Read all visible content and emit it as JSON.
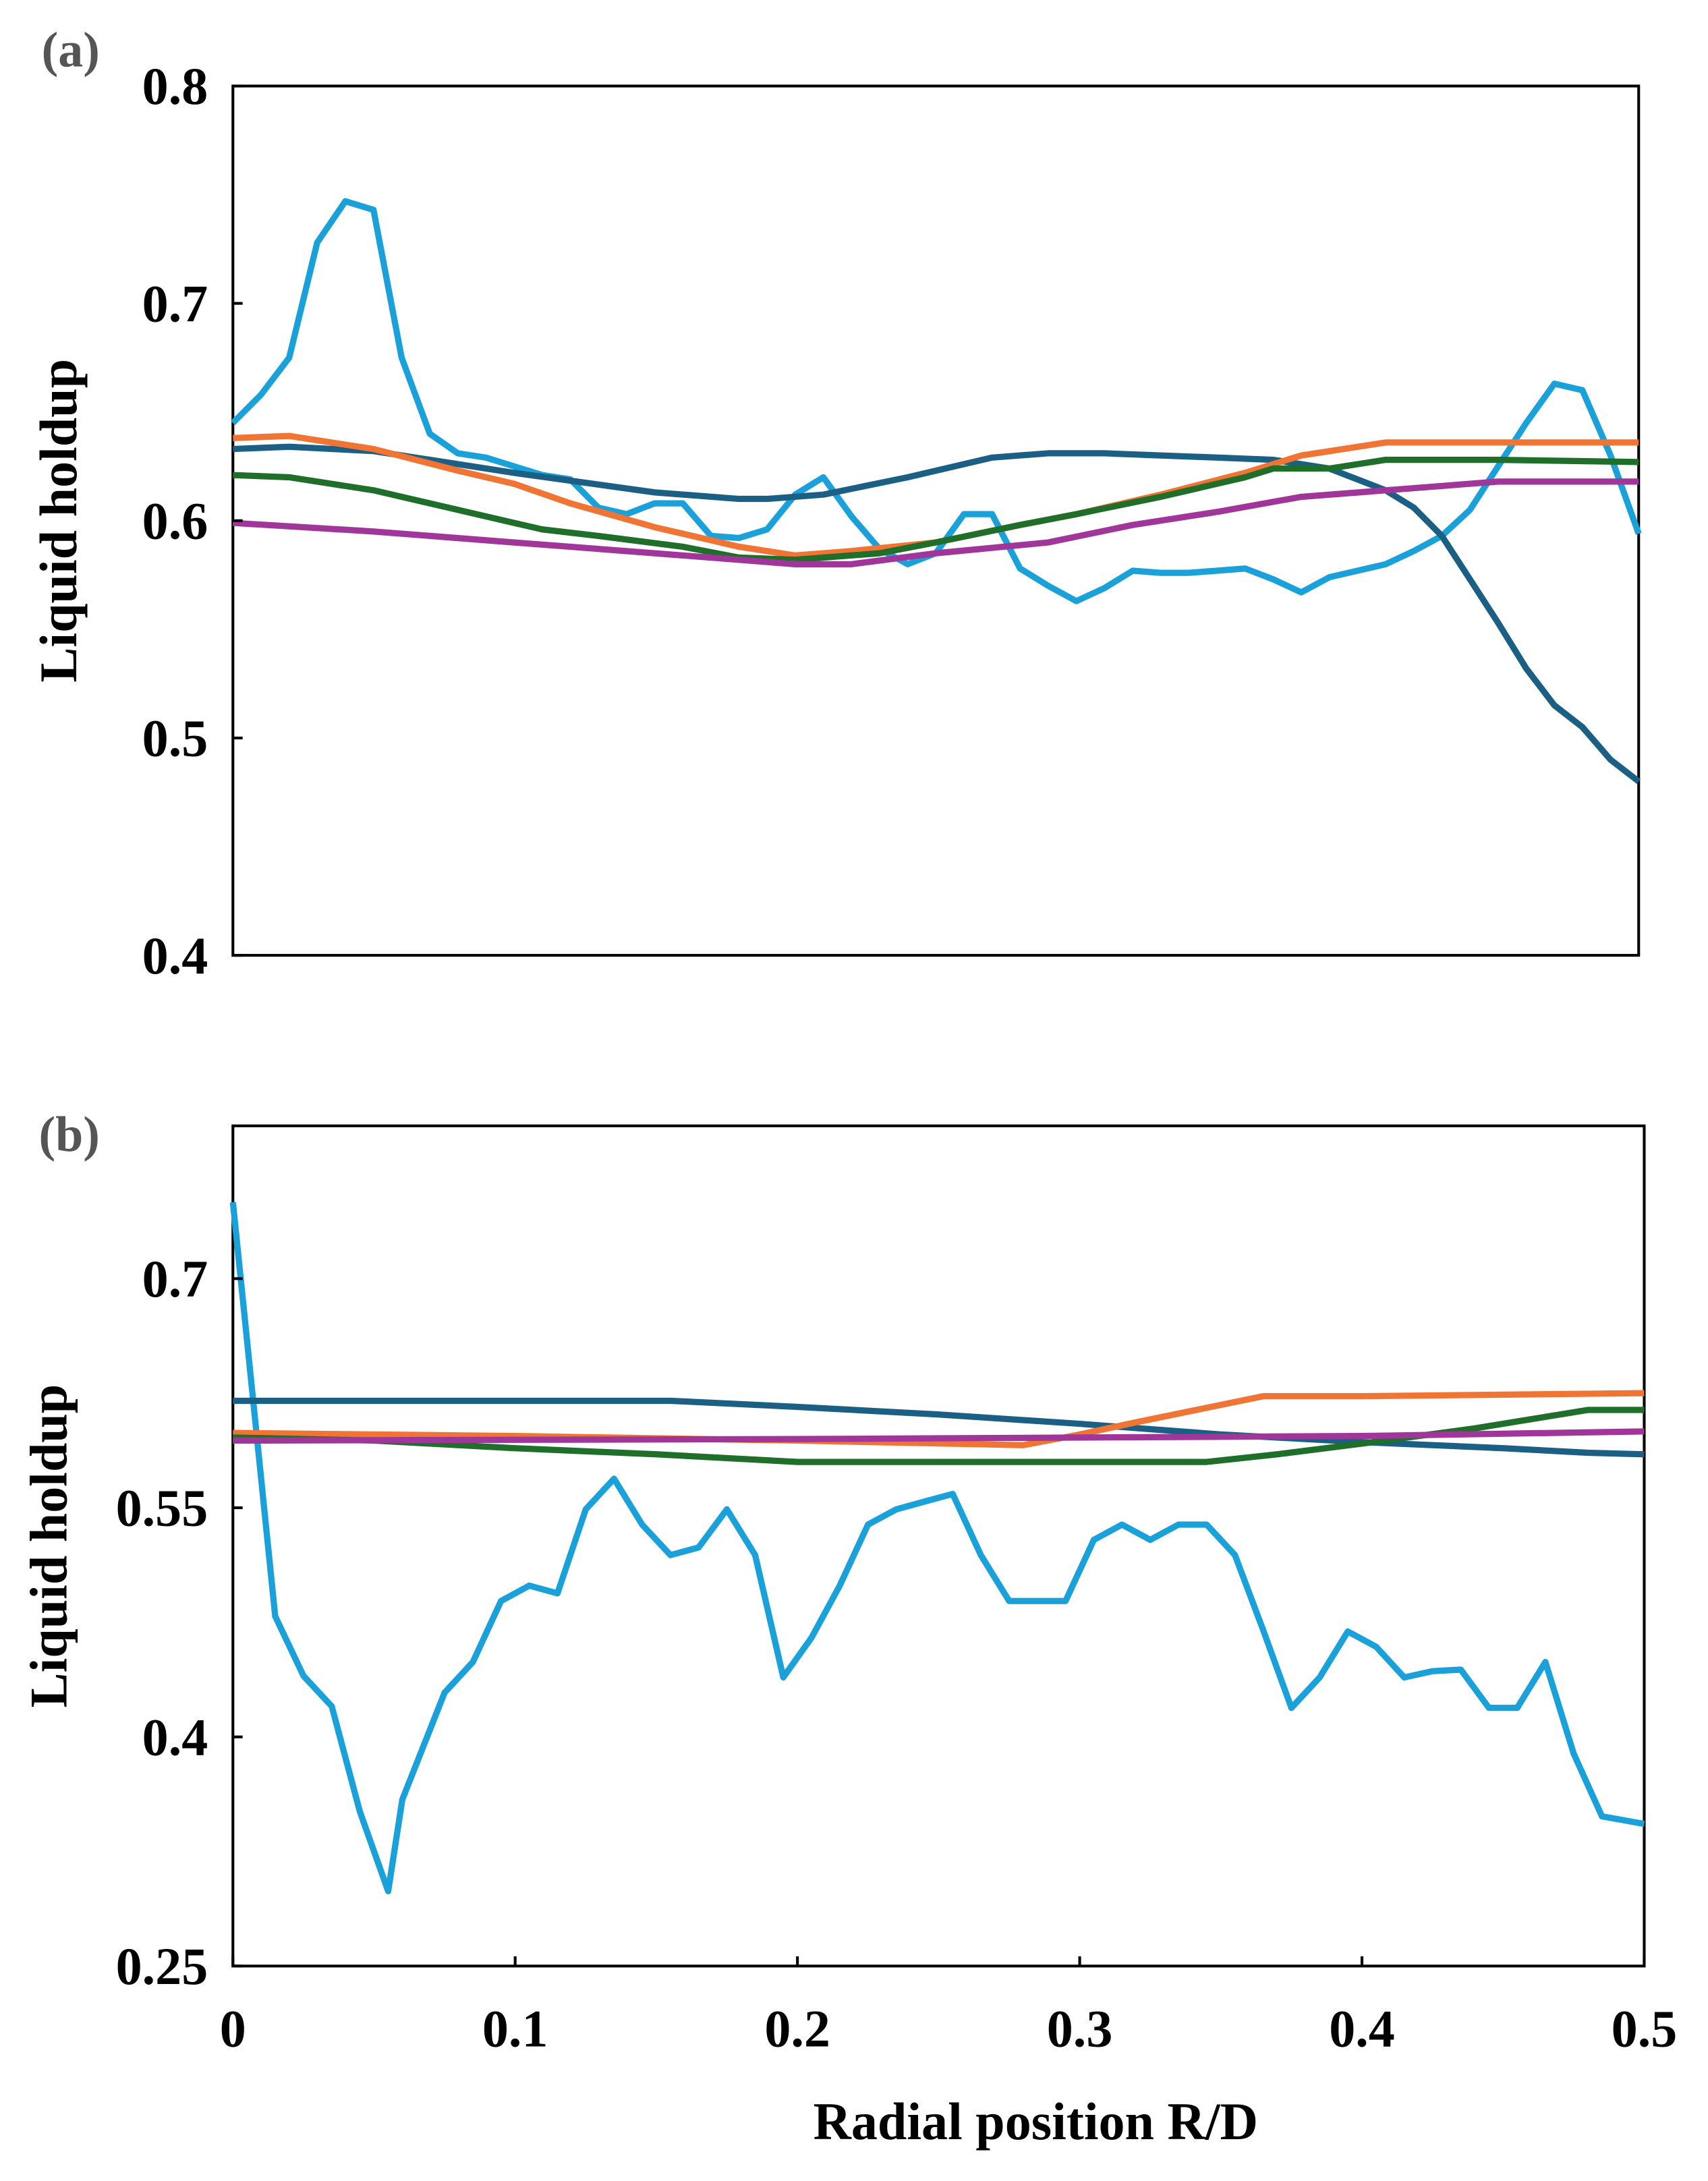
{
  "chart_data": [
    {
      "type": "line",
      "panel_label": "(a)",
      "xlabel": "",
      "ylabel": "Liquid holdup",
      "xlim": [
        0,
        0.5
      ],
      "ylim": [
        0.4,
        0.8
      ],
      "yticks": [
        "0.4",
        "0.5",
        "0.6",
        "0.7",
        "0.8"
      ],
      "xticks": [],
      "grid": false,
      "series": [
        {
          "color": "#1ba1d9",
          "x": [
            0,
            0.01,
            0.02,
            0.03,
            0.04,
            0.05,
            0.06,
            0.07,
            0.08,
            0.09,
            0.1,
            0.11,
            0.12,
            0.13,
            0.14,
            0.15,
            0.16,
            0.17,
            0.18,
            0.19,
            0.2,
            0.21,
            0.22,
            0.23,
            0.24,
            0.25,
            0.26,
            0.27,
            0.28,
            0.29,
            0.3,
            0.31,
            0.32,
            0.33,
            0.34,
            0.35,
            0.36,
            0.37,
            0.38,
            0.39,
            0.4,
            0.41,
            0.42,
            0.43,
            0.44,
            0.45,
            0.46,
            0.47,
            0.48,
            0.49,
            0.5
          ],
          "y": [
            0.645,
            0.658,
            0.675,
            0.728,
            0.747,
            0.743,
            0.675,
            0.64,
            0.631,
            0.629,
            0.625,
            0.621,
            0.619,
            0.606,
            0.603,
            0.608,
            0.608,
            0.593,
            0.592,
            0.596,
            0.612,
            0.62,
            0.602,
            0.587,
            0.58,
            0.585,
            0.603,
            0.603,
            0.578,
            0.57,
            0.563,
            0.569,
            0.577,
            0.576,
            0.576,
            0.577,
            0.578,
            0.573,
            0.567,
            0.574,
            0.577,
            0.58,
            0.586,
            0.593,
            0.605,
            0.625,
            0.645,
            0.663,
            0.66,
            0.63,
            0.594
          ]
        },
        {
          "color": "#1c5f85",
          "x": [
            0,
            0.02,
            0.05,
            0.1,
            0.15,
            0.18,
            0.19,
            0.21,
            0.24,
            0.27,
            0.29,
            0.31,
            0.35,
            0.37,
            0.39,
            0.41,
            0.42,
            0.43,
            0.44,
            0.45,
            0.46,
            0.47,
            0.48,
            0.49,
            0.5
          ],
          "y": [
            0.633,
            0.634,
            0.632,
            0.622,
            0.613,
            0.61,
            0.61,
            0.612,
            0.62,
            0.629,
            0.631,
            0.631,
            0.629,
            0.628,
            0.624,
            0.614,
            0.606,
            0.593,
            0.573,
            0.553,
            0.532,
            0.515,
            0.505,
            0.49,
            0.48
          ]
        },
        {
          "color": "#f07535",
          "x": [
            0,
            0.02,
            0.05,
            0.08,
            0.1,
            0.12,
            0.15,
            0.18,
            0.2,
            0.22,
            0.25,
            0.28,
            0.3,
            0.33,
            0.36,
            0.38,
            0.41,
            0.45,
            0.5
          ],
          "y": [
            0.638,
            0.639,
            0.633,
            0.623,
            0.617,
            0.608,
            0.597,
            0.588,
            0.584,
            0.586,
            0.59,
            0.598,
            0.603,
            0.612,
            0.622,
            0.63,
            0.636,
            0.636,
            0.636
          ]
        },
        {
          "color": "#1f6e2a",
          "x": [
            0,
            0.02,
            0.05,
            0.08,
            0.11,
            0.13,
            0.16,
            0.18,
            0.2,
            0.23,
            0.25,
            0.28,
            0.3,
            0.33,
            0.36,
            0.37,
            0.39,
            0.41,
            0.45,
            0.5
          ],
          "y": [
            0.621,
            0.62,
            0.614,
            0.605,
            0.596,
            0.593,
            0.588,
            0.583,
            0.582,
            0.585,
            0.59,
            0.598,
            0.603,
            0.611,
            0.62,
            0.624,
            0.624,
            0.628,
            0.628,
            0.627
          ]
        },
        {
          "color": "#a0359a",
          "x": [
            0,
            0.05,
            0.1,
            0.15,
            0.2,
            0.22,
            0.25,
            0.29,
            0.32,
            0.35,
            0.38,
            0.41,
            0.45,
            0.5
          ],
          "y": [
            0.599,
            0.595,
            0.59,
            0.585,
            0.58,
            0.58,
            0.585,
            0.59,
            0.598,
            0.604,
            0.611,
            0.614,
            0.618,
            0.618
          ]
        }
      ]
    },
    {
      "type": "line",
      "panel_label": "(b)",
      "xlabel": "Radial position R/D",
      "ylabel": "Liquid holdup",
      "xlim": [
        0,
        0.5
      ],
      "ylim": [
        0.25,
        0.8
      ],
      "yticks": [
        "0.25",
        "0.4",
        "0.55",
        "0.7"
      ],
      "xticks": [
        "0",
        "0.1",
        "0.2",
        "0.3",
        "0.4",
        "0.5"
      ],
      "grid": false,
      "series": [
        {
          "color": "#1ba1d9",
          "x": [
            0,
            0.015,
            0.025,
            0.035,
            0.045,
            0.055,
            0.06,
            0.075,
            0.085,
            0.095,
            0.105,
            0.115,
            0.125,
            0.135,
            0.145,
            0.155,
            0.165,
            0.175,
            0.185,
            0.195,
            0.205,
            0.215,
            0.225,
            0.235,
            0.245,
            0.255,
            0.265,
            0.275,
            0.295,
            0.305,
            0.315,
            0.325,
            0.335,
            0.345,
            0.355,
            0.365,
            0.375,
            0.385,
            0.395,
            0.405,
            0.415,
            0.425,
            0.435,
            0.445,
            0.455,
            0.465,
            0.475,
            0.485,
            0.5
          ],
          "y": [
            0.75,
            0.479,
            0.44,
            0.42,
            0.351,
            0.299,
            0.359,
            0.429,
            0.449,
            0.489,
            0.499,
            0.494,
            0.549,
            0.569,
            0.539,
            0.519,
            0.524,
            0.549,
            0.519,
            0.439,
            0.465,
            0.499,
            0.539,
            0.549,
            0.554,
            0.559,
            0.519,
            0.489,
            0.489,
            0.529,
            0.539,
            0.529,
            0.539,
            0.539,
            0.519,
            0.47,
            0.419,
            0.439,
            0.469,
            0.459,
            0.439,
            0.443,
            0.444,
            0.419,
            0.419,
            0.449,
            0.389,
            0.348,
            0.343
          ]
        },
        {
          "color": "#1c5f85",
          "x": [
            0,
            0.155,
            0.2,
            0.25,
            0.3,
            0.35,
            0.4,
            0.45,
            0.48,
            0.5
          ],
          "y": [
            0.62,
            0.62,
            0.616,
            0.611,
            0.605,
            0.598,
            0.593,
            0.589,
            0.586,
            0.585
          ]
        },
        {
          "color": "#f07535",
          "x": [
            0,
            0.1,
            0.2,
            0.28,
            0.3,
            0.32,
            0.365,
            0.4,
            0.5
          ],
          "y": [
            0.599,
            0.597,
            0.594,
            0.591,
            0.598,
            0.606,
            0.623,
            0.623,
            0.625
          ]
        },
        {
          "color": "#1f6e2a",
          "x": [
            0,
            0.05,
            0.1,
            0.15,
            0.2,
            0.345,
            0.37,
            0.4,
            0.44,
            0.48,
            0.5
          ],
          "y": [
            0.596,
            0.594,
            0.589,
            0.585,
            0.58,
            0.58,
            0.585,
            0.592,
            0.602,
            0.614,
            0.614
          ]
        },
        {
          "color": "#a0359a",
          "x": [
            0,
            0.2,
            0.4,
            0.5
          ],
          "y": [
            0.594,
            0.595,
            0.597,
            0.6
          ]
        }
      ]
    }
  ]
}
